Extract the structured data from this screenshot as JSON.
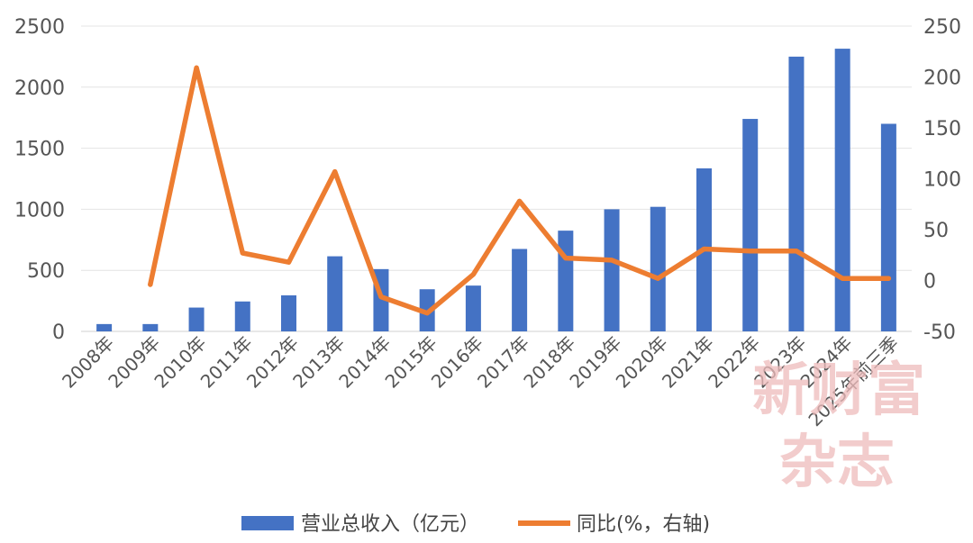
{
  "chart_data": {
    "type": "bar+line",
    "categories": [
      "2008年",
      "2009年",
      "2010年",
      "2011年",
      "2012年",
      "2013年",
      "2014年",
      "2015年",
      "2016年",
      "2017年",
      "2018年",
      "2019年",
      "2020年",
      "2021年",
      "2022年",
      "2023年",
      "2024年",
      "2025年前三季"
    ],
    "series": [
      {
        "name": "营业总收入（亿元）",
        "type": "bar",
        "axis": "left",
        "color": "#4472c4",
        "values": [
          60,
          60,
          195,
          245,
          295,
          615,
          510,
          345,
          375,
          675,
          825,
          1000,
          1020,
          1335,
          1740,
          2250,
          2315,
          1700
        ]
      },
      {
        "name": "同比(%，右轴)",
        "type": "line",
        "axis": "right",
        "color": "#ed7d31",
        "values": [
          null,
          -4,
          209,
          27,
          18,
          107,
          -16,
          -32,
          6,
          78,
          22,
          20,
          2,
          31,
          29,
          29,
          2,
          2
        ]
      }
    ],
    "y_left": {
      "range": [
        0,
        2500
      ],
      "ticks": [
        "0",
        "500",
        "1000",
        "1500",
        "2000",
        "2500"
      ]
    },
    "y_right": {
      "range": [
        -50,
        250
      ],
      "ticks": [
        "-50",
        "0",
        "50",
        "100",
        "150",
        "200",
        "250"
      ]
    },
    "grid": true,
    "legend": "bottom"
  },
  "watermark": {
    "line1": "新财富",
    "line2": "杂志"
  }
}
